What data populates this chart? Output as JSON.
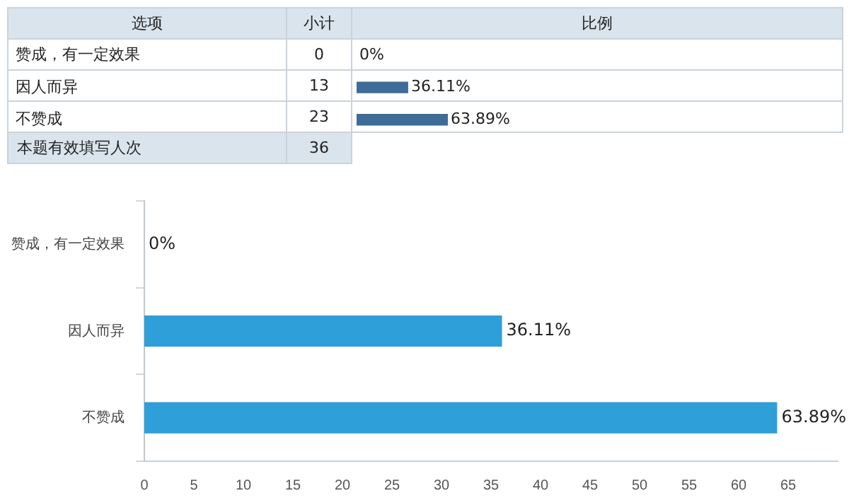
{
  "chart_data": [
    {
      "type": "bar",
      "orientation": "horizontal",
      "categories": [
        "赞成，有一定效果",
        "因人而异",
        "不赞成"
      ],
      "values": [
        0,
        36.11,
        63.89
      ],
      "value_labels": [
        "0%",
        "36.11%",
        "63.89%"
      ],
      "color": "#3d6c99",
      "tick_labels": "y",
      "legend": false,
      "grid": false,
      "annotations": [
        "选项",
        "小计",
        "比例",
        "0",
        "13",
        "23",
        "本题有效填写人次",
        "36"
      ]
    },
    {
      "type": "bar",
      "orientation": "horizontal",
      "categories": [
        "赞成，有一定效果",
        "因人而异",
        "不赞成"
      ],
      "values": [
        0,
        36.11,
        63.89
      ],
      "value_labels": [
        "0%",
        "36.11%",
        "63.89%"
      ],
      "color": "#2e9fd8",
      "xlim": [
        0,
        70
      ],
      "xticks": [
        0,
        5,
        10,
        15,
        20,
        25,
        30,
        35,
        40,
        45,
        50,
        55,
        60,
        65
      ],
      "legend": false,
      "grid": false
    }
  ]
}
